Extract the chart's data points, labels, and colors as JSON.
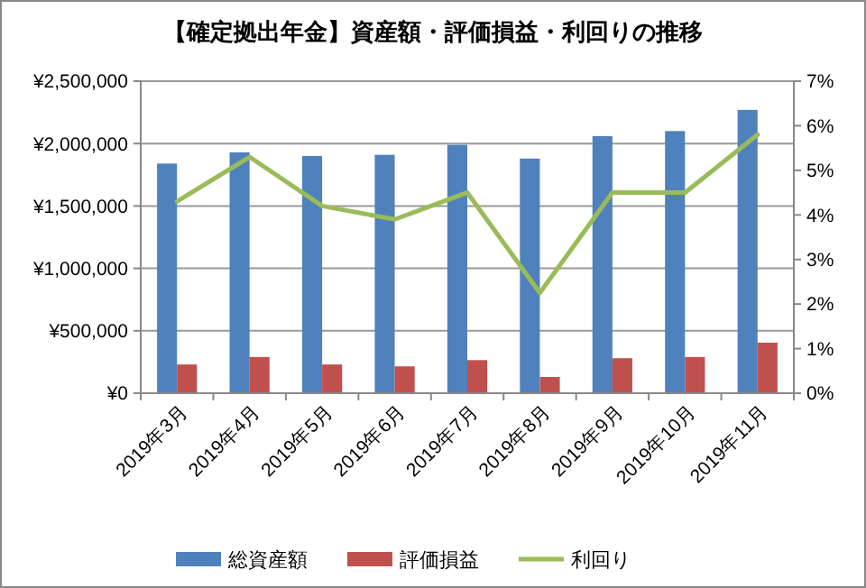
{
  "chart_data": {
    "type": "bar",
    "title": "【確定拠出年金】資産額・評価損益・利回りの推移",
    "categories": [
      "2019年3月",
      "2019年4月",
      "2019年5月",
      "2019年6月",
      "2019年7月",
      "2019年8月",
      "2019年9月",
      "2019年10月",
      "2019年11月"
    ],
    "series": [
      {
        "name": "総資産額",
        "color": "#4f81bd",
        "values": [
          1840000,
          1930000,
          1900000,
          1910000,
          1990000,
          1880000,
          2060000,
          2100000,
          2270000
        ]
      },
      {
        "name": "評価損益",
        "color": "#c0504d",
        "values": [
          230000,
          290000,
          230000,
          215000,
          265000,
          130000,
          280000,
          290000,
          405000
        ]
      },
      {
        "name": "利回り",
        "type": "line",
        "axis": "y2",
        "color": "#9bbb59",
        "values": [
          4.3,
          5.3,
          4.2,
          3.9,
          4.5,
          2.25,
          4.5,
          4.5,
          5.8
        ]
      }
    ],
    "ylim": [
      0,
      2500000
    ],
    "yticks": [
      {
        "value": 0,
        "label": "¥0"
      },
      {
        "value": 500000,
        "label": "¥500,000"
      },
      {
        "value": 1000000,
        "label": "¥1,000,000"
      },
      {
        "value": 1500000,
        "label": "¥1,500,000"
      },
      {
        "value": 2000000,
        "label": "¥2,000,000"
      },
      {
        "value": 2500000,
        "label": "¥2,500,000"
      }
    ],
    "y2lim": [
      0,
      7
    ],
    "y2ticks": [
      {
        "value": 0,
        "label": "0%"
      },
      {
        "value": 1,
        "label": "1%"
      },
      {
        "value": 2,
        "label": "2%"
      },
      {
        "value": 3,
        "label": "3%"
      },
      {
        "value": 4,
        "label": "4%"
      },
      {
        "value": 5,
        "label": "5%"
      },
      {
        "value": 6,
        "label": "6%"
      },
      {
        "value": 7,
        "label": "7%"
      }
    ],
    "grid": "y",
    "legend": "bottom"
  }
}
